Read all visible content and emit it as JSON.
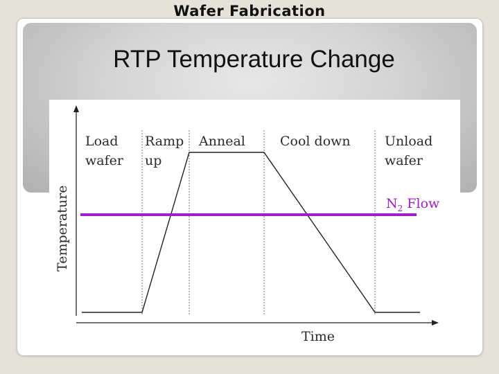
{
  "header": {
    "title": "Wafer Fabrication"
  },
  "slide": {
    "title": "RTP Temperature Change"
  },
  "diagram": {
    "phases": [
      {
        "line1": "Load",
        "line2": "wafer"
      },
      {
        "line1": "Ramp",
        "line2": "up"
      },
      {
        "line1": "Anneal",
        "line2": ""
      },
      {
        "line1": "Cool down",
        "line2": ""
      },
      {
        "line1": "Unload",
        "line2": "wafer"
      }
    ],
    "flow_label_main": "N",
    "flow_label_sub": "2",
    "flow_label_rest": " Flow",
    "y_axis_label": "Temperature",
    "x_axis_label": "Time",
    "flow_color": "#a020c8",
    "curve_color": "#222222"
  }
}
